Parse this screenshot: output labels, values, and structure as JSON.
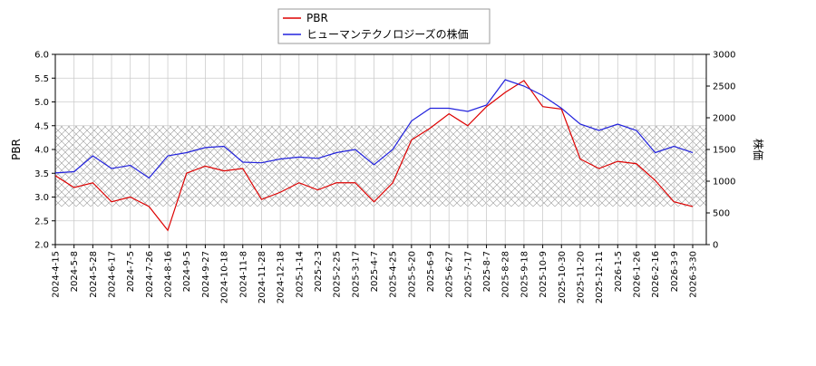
{
  "chart_data": {
    "type": "line",
    "categories": [
      "2024-4-15",
      "2024-5-8",
      "2024-5-28",
      "2024-6-17",
      "2024-7-5",
      "2024-7-26",
      "2024-8-16",
      "2024-9-5",
      "2024-9-27",
      "2024-10-18",
      "2024-11-8",
      "2024-11-28",
      "2024-12-18",
      "2025-1-14",
      "2025-2-3",
      "2025-2-25",
      "2025-3-17",
      "2025-4-7",
      "2025-4-25",
      "2025-5-20",
      "2025-6-9",
      "2025-6-27",
      "2025-7-17",
      "2025-8-7",
      "2025-8-28",
      "2025-9-18",
      "2025-10-9",
      "2025-10-30",
      "2025-11-20",
      "2025-12-11",
      "2026-1-5",
      "2026-1-26",
      "2026-2-16",
      "2026-3-9",
      "2026-3-30"
    ],
    "series": [
      {
        "name": "PBR",
        "color": "#dd0000",
        "axis": "y",
        "values": [
          3.45,
          3.2,
          3.3,
          2.9,
          3.0,
          2.8,
          2.3,
          3.5,
          3.65,
          3.55,
          3.6,
          2.95,
          3.1,
          3.3,
          3.15,
          3.3,
          3.3,
          2.9,
          3.3,
          4.2,
          4.45,
          4.75,
          4.5,
          4.9,
          5.2,
          5.45,
          4.9,
          4.85,
          3.8,
          3.6,
          3.75,
          3.7,
          3.35,
          2.9,
          2.8
        ]
      },
      {
        "name": "ヒューマンテクノロジーズの株価",
        "color": "#2222dd",
        "axis": "y2",
        "values": [
          1130,
          1150,
          1400,
          1200,
          1250,
          1050,
          1400,
          1450,
          1530,
          1550,
          1300,
          1290,
          1350,
          1380,
          1360,
          1450,
          1500,
          1260,
          1500,
          1950,
          2150,
          2150,
          2100,
          2200,
          2600,
          2500,
          2350,
          2150,
          1900,
          1800,
          1900,
          1800,
          1450,
          1550,
          1450
        ]
      }
    ],
    "ylabel": "PBR",
    "y2label": "株価",
    "ylim": [
      2.0,
      6.0
    ],
    "yticks": [
      {
        "value": 2.0,
        "label": "2.0"
      },
      {
        "value": 2.5,
        "label": "2.5"
      },
      {
        "value": 3.0,
        "label": "3.0"
      },
      {
        "value": 3.5,
        "label": "3.5"
      },
      {
        "value": 4.0,
        "label": "4.0"
      },
      {
        "value": 4.5,
        "label": "4.5"
      },
      {
        "value": 5.0,
        "label": "5.0"
      },
      {
        "value": 5.5,
        "label": "5.5"
      },
      {
        "value": 6.0,
        "label": "6.0"
      }
    ],
    "y2lim": [
      0,
      3000
    ],
    "y2ticks": [
      0,
      500,
      1000,
      1500,
      2000,
      2500,
      3000
    ],
    "shaded_range": [
      2.8,
      4.5
    ],
    "grid": true,
    "legend": "top"
  }
}
